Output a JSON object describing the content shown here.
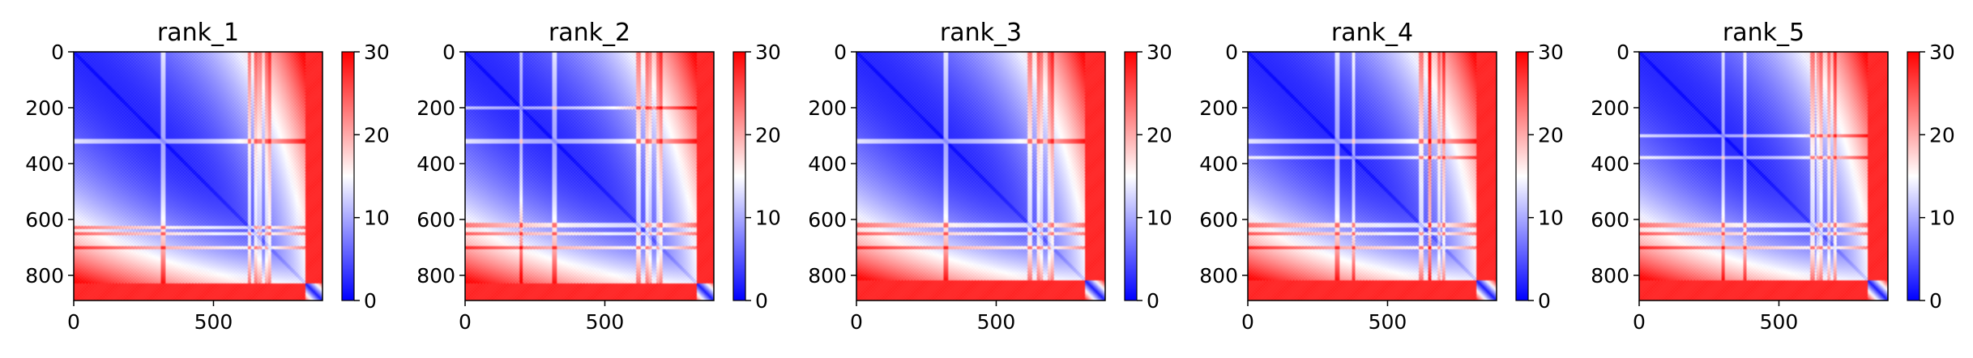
{
  "chart_data": [
    {
      "type": "heatmap",
      "title": "rank_1",
      "xlabel": "",
      "ylabel": "",
      "x_range": [
        0,
        890
      ],
      "y_range": [
        0,
        890
      ],
      "xticks": [
        0,
        500
      ],
      "yticks": [
        0,
        200,
        400,
        600,
        800
      ],
      "colorbar": {
        "min": 0,
        "max": 30,
        "ticks": [
          0,
          10,
          20,
          30
        ],
        "colormap": "bwr"
      },
      "features": {
        "diagonal_band_extent": 830,
        "outer_band_start": 830,
        "bright_stripe_rows": [
          320,
          630,
          650,
          700
        ],
        "bright_stripe_cols": [
          665,
          690
        ],
        "periodic_texture": true
      }
    },
    {
      "type": "heatmap",
      "title": "rank_2",
      "xlabel": "",
      "ylabel": "",
      "x_range": [
        0,
        890
      ],
      "y_range": [
        0,
        890
      ],
      "xticks": [
        0,
        500
      ],
      "yticks": [
        0,
        200,
        400,
        600,
        800
      ],
      "colorbar": {
        "min": 0,
        "max": 30,
        "ticks": [
          0,
          10,
          20,
          30
        ],
        "colormap": "bwr"
      },
      "features": {
        "diagonal_band_extent": 830,
        "outer_band_start": 830,
        "bright_stripe_rows": [
          200,
          320,
          620,
          650,
          700
        ],
        "bright_stripe_cols": [
          660,
          690
        ],
        "periodic_texture": true
      }
    },
    {
      "type": "heatmap",
      "title": "rank_3",
      "xlabel": "",
      "ylabel": "",
      "x_range": [
        0,
        890
      ],
      "y_range": [
        0,
        890
      ],
      "xticks": [
        0,
        500
      ],
      "yticks": [
        0,
        200,
        400,
        600,
        800
      ],
      "colorbar": {
        "min": 0,
        "max": 30,
        "ticks": [
          0,
          10,
          20,
          30
        ],
        "colormap": "bwr"
      },
      "features": {
        "diagonal_band_extent": 820,
        "outer_band_start": 820,
        "bright_stripe_rows": [
          320,
          620,
          650,
          700
        ],
        "bright_stripe_cols": [
          660,
          690
        ],
        "periodic_texture": true
      }
    },
    {
      "type": "heatmap",
      "title": "rank_4",
      "xlabel": "",
      "ylabel": "",
      "x_range": [
        0,
        890
      ],
      "y_range": [
        0,
        890
      ],
      "xticks": [
        0,
        500
      ],
      "yticks": [
        0,
        200,
        400,
        600,
        800
      ],
      "colorbar": {
        "min": 0,
        "max": 30,
        "ticks": [
          0,
          10,
          20,
          30
        ],
        "colormap": "bwr"
      },
      "features": {
        "diagonal_band_extent": 820,
        "outer_band_start": 820,
        "bright_stripe_rows": [
          320,
          380,
          620,
          650,
          700
        ],
        "bright_stripe_cols": [
          650,
          685
        ],
        "periodic_texture": true
      }
    },
    {
      "type": "heatmap",
      "title": "rank_5",
      "xlabel": "",
      "ylabel": "",
      "x_range": [
        0,
        890
      ],
      "y_range": [
        0,
        890
      ],
      "xticks": [
        0,
        500
      ],
      "yticks": [
        0,
        200,
        400,
        600,
        800
      ],
      "colorbar": {
        "min": 0,
        "max": 30,
        "ticks": [
          0,
          10,
          20,
          30
        ],
        "colormap": "bwr"
      },
      "features": {
        "diagonal_band_extent": 820,
        "outer_band_start": 820,
        "bright_stripe_rows": [
          300,
          380,
          620,
          650,
          700
        ],
        "bright_stripe_cols": [
          640,
          680
        ],
        "periodic_texture": true
      }
    }
  ]
}
